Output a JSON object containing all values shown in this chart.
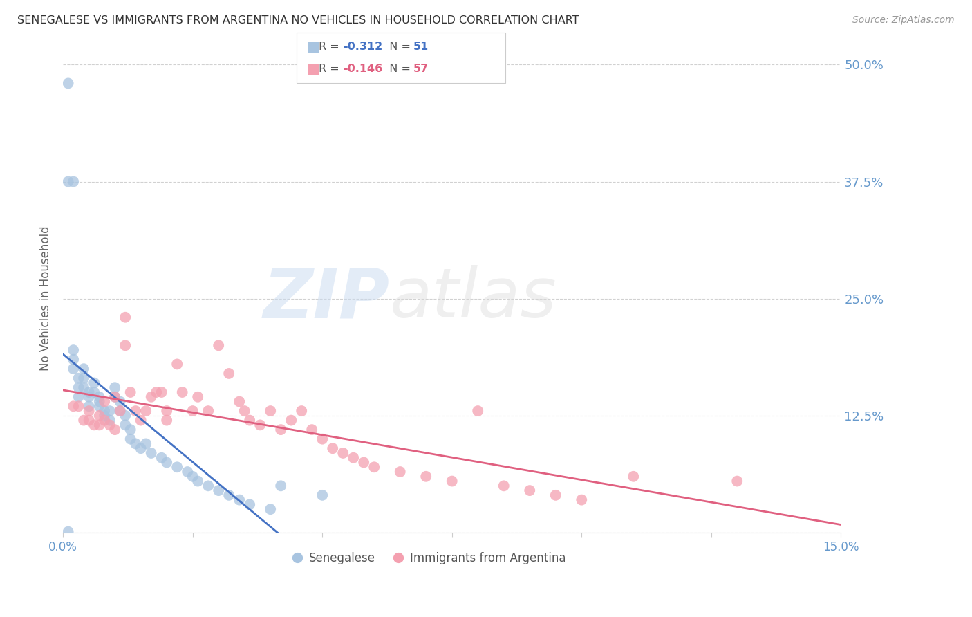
{
  "title": "SENEGALESE VS IMMIGRANTS FROM ARGENTINA NO VEHICLES IN HOUSEHOLD CORRELATION CHART",
  "source": "Source: ZipAtlas.com",
  "ylabel": "No Vehicles in Household",
  "xlim": [
    0.0,
    0.15
  ],
  "ylim": [
    0.0,
    0.5
  ],
  "senegalese_R": -0.312,
  "senegalese_N": 51,
  "argentina_R": -0.146,
  "argentina_N": 57,
  "color_senegalese": "#a8c4e0",
  "color_argentina": "#f4a0b0",
  "color_line_senegalese": "#4472c4",
  "color_line_argentina": "#e06080",
  "color_axis_labels": "#6699cc",
  "watermark_zip": "ZIP",
  "watermark_atlas": "atlas",
  "senegalese_x": [
    0.001,
    0.001,
    0.002,
    0.002,
    0.002,
    0.002,
    0.003,
    0.003,
    0.003,
    0.004,
    0.004,
    0.004,
    0.005,
    0.005,
    0.005,
    0.006,
    0.006,
    0.007,
    0.007,
    0.007,
    0.008,
    0.008,
    0.009,
    0.009,
    0.01,
    0.01,
    0.011,
    0.011,
    0.012,
    0.012,
    0.013,
    0.013,
    0.014,
    0.015,
    0.016,
    0.017,
    0.019,
    0.02,
    0.022,
    0.024,
    0.025,
    0.026,
    0.028,
    0.03,
    0.032,
    0.034,
    0.036,
    0.04,
    0.042,
    0.05,
    0.001
  ],
  "senegalese_y": [
    0.48,
    0.375,
    0.375,
    0.195,
    0.185,
    0.175,
    0.165,
    0.155,
    0.145,
    0.175,
    0.165,
    0.155,
    0.15,
    0.145,
    0.135,
    0.16,
    0.15,
    0.145,
    0.14,
    0.135,
    0.13,
    0.125,
    0.13,
    0.12,
    0.155,
    0.145,
    0.14,
    0.13,
    0.125,
    0.115,
    0.11,
    0.1,
    0.095,
    0.09,
    0.095,
    0.085,
    0.08,
    0.075,
    0.07,
    0.065,
    0.06,
    0.055,
    0.05,
    0.045,
    0.04,
    0.035,
    0.03,
    0.025,
    0.05,
    0.04,
    0.001
  ],
  "argentina_x": [
    0.002,
    0.003,
    0.004,
    0.005,
    0.005,
    0.006,
    0.007,
    0.007,
    0.008,
    0.008,
    0.009,
    0.01,
    0.01,
    0.011,
    0.012,
    0.012,
    0.013,
    0.014,
    0.015,
    0.016,
    0.017,
    0.018,
    0.019,
    0.02,
    0.02,
    0.022,
    0.023,
    0.025,
    0.026,
    0.028,
    0.03,
    0.032,
    0.034,
    0.035,
    0.036,
    0.038,
    0.04,
    0.042,
    0.044,
    0.046,
    0.048,
    0.05,
    0.052,
    0.054,
    0.056,
    0.058,
    0.06,
    0.065,
    0.07,
    0.075,
    0.08,
    0.085,
    0.09,
    0.095,
    0.1,
    0.11,
    0.13
  ],
  "argentina_y": [
    0.135,
    0.135,
    0.12,
    0.13,
    0.12,
    0.115,
    0.125,
    0.115,
    0.14,
    0.12,
    0.115,
    0.145,
    0.11,
    0.13,
    0.23,
    0.2,
    0.15,
    0.13,
    0.12,
    0.13,
    0.145,
    0.15,
    0.15,
    0.13,
    0.12,
    0.18,
    0.15,
    0.13,
    0.145,
    0.13,
    0.2,
    0.17,
    0.14,
    0.13,
    0.12,
    0.115,
    0.13,
    0.11,
    0.12,
    0.13,
    0.11,
    0.1,
    0.09,
    0.085,
    0.08,
    0.075,
    0.07,
    0.065,
    0.06,
    0.055,
    0.13,
    0.05,
    0.045,
    0.04,
    0.035,
    0.06,
    0.055
  ]
}
